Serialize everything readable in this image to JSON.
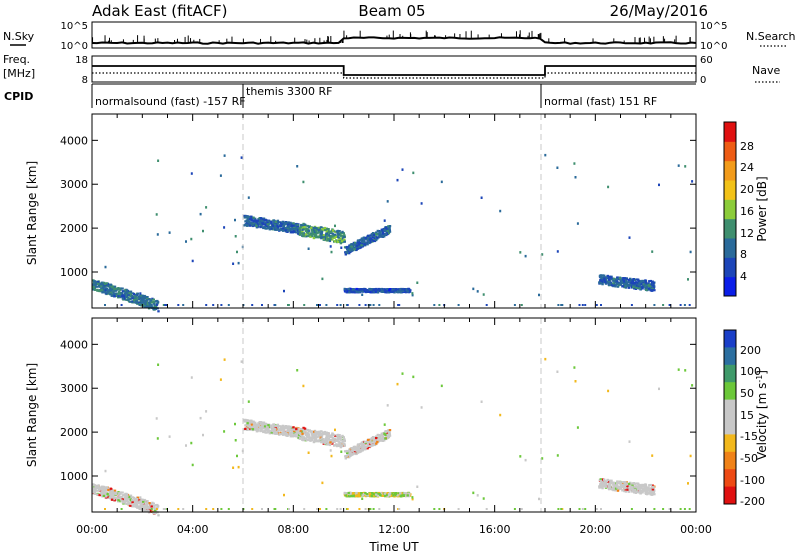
{
  "header": {
    "station": "Adak East (fitACF)",
    "beam": "Beam 05",
    "date": "26/May/2016"
  },
  "status_panels": {
    "nsky_label": "N.Sky",
    "nsearch_label": "N.Search",
    "noise_ticks": [
      "10^5",
      "10^0"
    ],
    "freq_label_1": "Freq.",
    "freq_label_2": "[MHz]",
    "freq_ticks": [
      "18",
      "8"
    ],
    "nave_label": "Nave",
    "nave_ticks": [
      "60",
      "0"
    ],
    "cpid_label": "CPID",
    "cpid_segments": [
      {
        "label": "normalsound (fast) -157 RF",
        "start_h": 0,
        "end_h": 6
      },
      {
        "label": "themis 3300 RF",
        "start_h": 6,
        "end_h": 18
      },
      {
        "label": "normal (fast) 151 RF",
        "start_h": 18,
        "end_h": 24
      }
    ]
  },
  "x_axis": {
    "label": "Time UT",
    "ticks": [
      "00:00",
      "04:00",
      "08:00",
      "12:00",
      "16:00",
      "20:00",
      "00:00"
    ]
  },
  "power_panel": {
    "ylabel": "Slant Range [km]",
    "yticks": [
      "1000",
      "2000",
      "3000",
      "4000"
    ],
    "colorbar_label": "Power [dB]",
    "colorbar_ticks": [
      "4",
      "8",
      "12",
      "16",
      "20",
      "24",
      "28"
    ]
  },
  "velocity_panel": {
    "ylabel": "Slant Range [km]",
    "yticks": [
      "1000",
      "2000",
      "3000",
      "4000"
    ],
    "colorbar_label": "Velocity [m s^-1]",
    "colorbar_ticks": [
      "200",
      "100",
      "50",
      "15",
      "-15",
      "-50",
      "-100",
      "-200"
    ]
  },
  "chart_data": {
    "type": "heatmap",
    "title": "Adak East (fitACF)  Beam 05  26/May/2016",
    "xlabel": "Time UT",
    "ylabel": "Slant Range [km]",
    "xlim_hours": [
      0,
      24
    ],
    "ylim_km": [
      180,
      4600
    ],
    "mode_change_hours": [
      6,
      10,
      18
    ],
    "echo_regions": [
      {
        "t0": 0.0,
        "t1": 2.6,
        "r_start_km": 750,
        "r_end_km": 250,
        "thickness_km": 250,
        "power_db": 10,
        "velocity_class": "low"
      },
      {
        "t0": 6.0,
        "t1": 8.2,
        "r_start_km": 2200,
        "r_end_km": 2000,
        "thickness_km": 230,
        "power_db": 8,
        "velocity_class": "low"
      },
      {
        "t0": 8.2,
        "t1": 10.0,
        "r_start_km": 2000,
        "r_end_km": 1800,
        "thickness_km": 280,
        "power_db": 12,
        "velocity_class": "low"
      },
      {
        "t0": 10.0,
        "t1": 11.8,
        "r_start_km": 1500,
        "r_end_km": 2000,
        "thickness_km": 200,
        "power_db": 8,
        "velocity_class": "low"
      },
      {
        "t0": 10.0,
        "t1": 12.6,
        "r_start_km": 600,
        "r_end_km": 600,
        "thickness_km": 80,
        "power_db": 6,
        "velocity_class": "mixed"
      },
      {
        "t0": 20.1,
        "t1": 22.3,
        "r_start_km": 850,
        "r_end_km": 700,
        "thickness_km": 220,
        "power_db": 8,
        "velocity_class": "low"
      }
    ],
    "colorbar_power_db": [
      0,
      32
    ],
    "colorbar_velocity_ms": [
      -200,
      200
    ],
    "grid": "vertical dashed lines at mode changes"
  }
}
